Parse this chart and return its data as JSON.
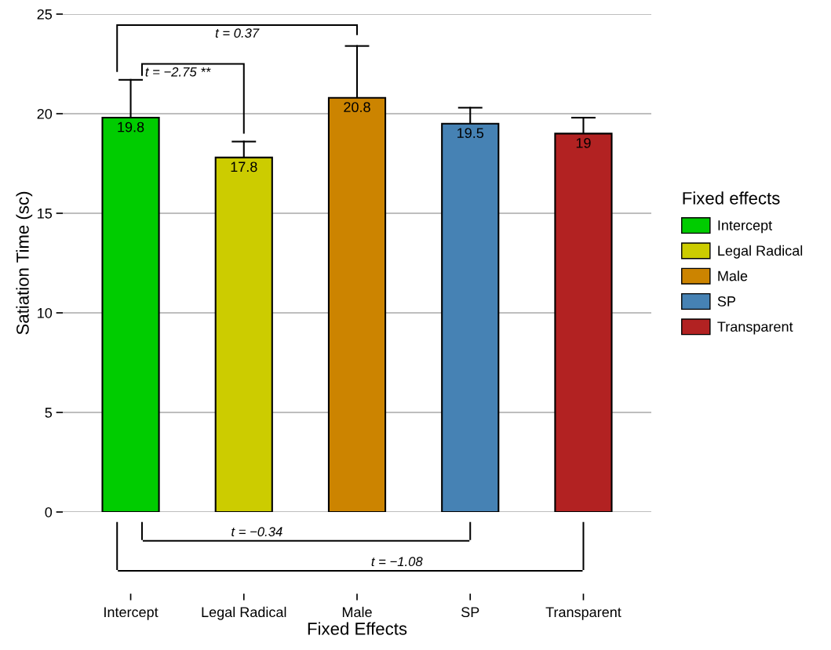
{
  "chart_data": {
    "type": "bar",
    "xlabel": "Fixed Effects",
    "ylabel": "Satiation Time (sc)",
    "legend_title": "Fixed effects",
    "categories": [
      "Intercept",
      "Legal Radical",
      "Male",
      "SP",
      "Transparent"
    ],
    "stacked": true,
    "series": [
      {
        "name": "Intercept",
        "color": "#00cc00",
        "values": [
          19.8,
          null,
          null,
          null,
          null
        ],
        "errors": [
          [
            19.8,
            21.7
          ],
          null,
          null,
          null,
          null
        ]
      },
      {
        "name": "Legal Radical",
        "color": "#cccc00",
        "values": [
          null,
          17.8,
          null,
          null,
          null
        ],
        "errors": [
          null,
          [
            17.8,
            18.6
          ],
          null,
          null,
          null
        ]
      },
      {
        "name": "Male",
        "color": "#cc8400",
        "values": [
          null,
          null,
          20.8,
          null,
          null
        ],
        "errors": [
          null,
          null,
          [
            20.8,
            23.4
          ],
          null,
          null
        ]
      },
      {
        "name": "SP",
        "color": "#4682b4",
        "values": [
          null,
          null,
          null,
          19.5,
          null
        ],
        "errors": [
          null,
          null,
          null,
          [
            19.5,
            20.3
          ],
          null
        ]
      },
      {
        "name": "Transparent",
        "color": "#b22222",
        "values": [
          null,
          null,
          null,
          null,
          19
        ],
        "errors": [
          null,
          null,
          null,
          null,
          [
            19,
            19.8
          ]
        ]
      }
    ],
    "data_labels": true,
    "ylim": [
      0,
      25
    ],
    "yticks": [
      0,
      5,
      10,
      15,
      20,
      25
    ],
    "grid": "y",
    "legend": "right",
    "annotations": [
      "t = 0.37",
      "t = −2.75 **",
      "t = −0.34",
      "t = −1.08"
    ]
  }
}
